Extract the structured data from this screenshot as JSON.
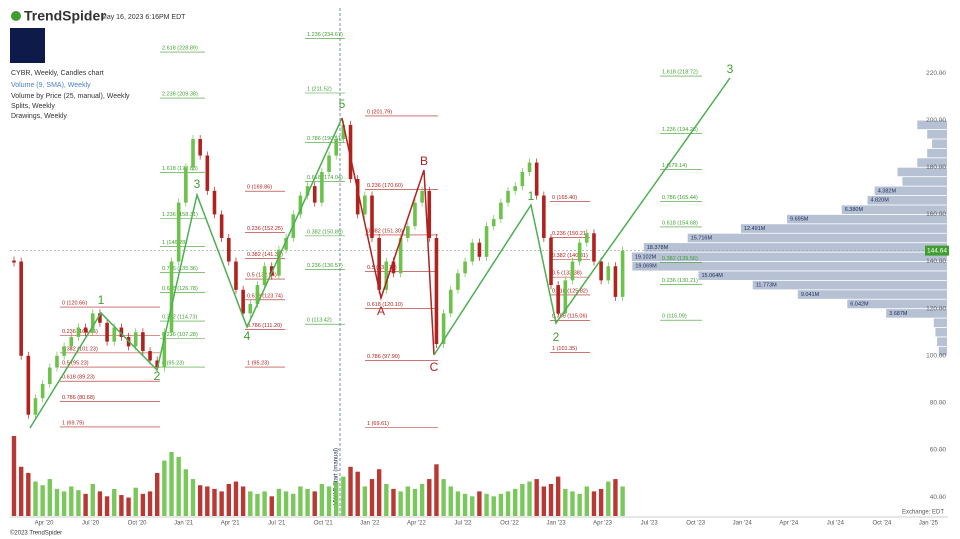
{
  "header": {
    "brand": "TrendSpider",
    "timestamp": "May 16, 2023 6:16PM EDT"
  },
  "legend": [
    "CYBR, Weekly, Candles chart",
    "Volume (9, SMA), Weekly",
    "Volume by Price (25, manual), Weekly",
    "Splits, Weekly",
    "Drawings, Weekly"
  ],
  "footer": {
    "copyright": "©2023 TrendSpider",
    "exchange": "Exchange: EDT"
  },
  "chart_data": {
    "type": "candlestick",
    "closes": [
      140,
      100,
      75,
      82,
      88,
      95,
      100,
      104,
      108,
      112,
      110,
      118,
      114,
      106,
      112,
      108,
      104,
      110,
      102,
      98,
      95,
      110,
      140,
      165,
      180,
      192,
      185,
      170,
      160,
      150,
      140,
      128,
      118,
      122,
      130,
      138,
      134,
      145,
      150,
      160,
      168,
      172,
      165,
      178,
      185,
      192,
      198,
      175,
      160,
      168,
      150,
      128,
      140,
      135,
      150,
      155,
      165,
      170,
      150,
      105,
      118,
      128,
      135,
      140,
      148,
      142,
      155,
      158,
      165,
      170,
      172,
      178,
      182,
      168,
      150,
      130,
      118,
      132,
      140,
      148,
      152,
      140,
      132,
      138,
      125,
      144.64
    ],
    "volumes": [
      6.5,
      4.0,
      3.5,
      2.8,
      2.5,
      3.0,
      2.2,
      2.0,
      2.4,
      2.1,
      1.8,
      2.6,
      2.0,
      1.6,
      2.2,
      1.7,
      1.5,
      2.3,
      1.8,
      2.0,
      3.5,
      4.5,
      5.2,
      4.8,
      3.8,
      3.0,
      2.5,
      2.4,
      2.2,
      2.0,
      2.6,
      2.8,
      2.4,
      2.0,
      1.8,
      2.0,
      1.6,
      2.2,
      2.0,
      1.8,
      2.4,
      2.2,
      2.0,
      2.6,
      2.4,
      2.8,
      3.2,
      4.0,
      3.6,
      2.4,
      3.0,
      3.8,
      2.6,
      2.2,
      2.0,
      2.4,
      2.2,
      2.6,
      3.0,
      4.2,
      3.0,
      2.4,
      2.0,
      1.8,
      1.6,
      2.0,
      1.8,
      1.6,
      1.8,
      2.0,
      2.2,
      2.6,
      2.8,
      3.0,
      2.4,
      2.6,
      3.2,
      2.2,
      2.0,
      1.8,
      2.4,
      2.0,
      2.2,
      2.8,
      3.0,
      2.4
    ],
    "up_color": "#6cc24a",
    "down_color": "#b0221e",
    "ylim": [
      32,
      247.6
    ],
    "yticks": [
      {
        "value": 40,
        "label": "40.00"
      },
      {
        "value": 60,
        "label": "60.00"
      },
      {
        "value": 80,
        "label": "80.00"
      },
      {
        "value": 100,
        "label": "100.00"
      },
      {
        "value": 120,
        "label": "120.00"
      },
      {
        "value": 140,
        "label": "140.00"
      },
      {
        "value": 160,
        "label": "160.00"
      },
      {
        "value": 180,
        "label": "180.00"
      },
      {
        "value": 200,
        "label": "200.00"
      },
      {
        "value": 220,
        "label": "220.00"
      }
    ],
    "x_labels": [
      "Apr '20",
      "Jul '20",
      "Oct '20",
      "Jan '21",
      "Apr '21",
      "Jul '21",
      "Oct '21",
      "Jan '22",
      "Apr '22",
      "Jul '22",
      "Oct '22",
      "Jan '23",
      "Apr '23",
      "Jul '23",
      "Oct '23",
      "Jan '24",
      "Apr '24",
      "Jul '24",
      "Oct '24",
      "Jan '25"
    ],
    "last_price": 144.64,
    "vwap_label": "VWAP Start (manual)",
    "fib_groups": [
      {
        "color": "#b0221e",
        "levels": [
          {
            "value": 120.66,
            "label": "0 (120.66)"
          },
          {
            "value": 108.66,
            "label": "0.236 (108.66)"
          },
          {
            "value": 101.23,
            "label": "0.382 (101.23)"
          },
          {
            "value": 95.23,
            "label": "0.5 (95.23)"
          },
          {
            "value": 89.23,
            "label": "0.618 (89.23)"
          },
          {
            "value": 80.68,
            "label": "0.786 (80.68)"
          },
          {
            "value": 69.79,
            "label": "1 (69.79)"
          }
        ]
      },
      {
        "color": "#3f9e2f",
        "levels": [
          {
            "value": 228.89,
            "label": "2.618 (228.89)"
          },
          {
            "value": 209.38,
            "label": "2.236 (209.38)"
          },
          {
            "value": 177.83,
            "label": "1.618 (177.83)"
          },
          {
            "value": 158.31,
            "label": "1.236 (158.31)"
          },
          {
            "value": 146.28,
            "label": "1 (146.28)"
          },
          {
            "value": 135.36,
            "label": "0.786 (135.36)"
          },
          {
            "value": 126.78,
            "label": "0.618 (126.78)"
          },
          {
            "value": 114.73,
            "label": "0.382 (114.73)"
          },
          {
            "value": 107.28,
            "label": "0.236 (107.28)"
          },
          {
            "value": 95.23,
            "label": "0 (95.23)"
          }
        ]
      },
      {
        "color": "#b0221e",
        "levels": [
          {
            "value": 169.86,
            "label": "0 (169.86)"
          },
          {
            "value": 152.25,
            "label": "0.236 (152.25)"
          },
          {
            "value": 141.37,
            "label": "0.382 (141.37)"
          },
          {
            "value": 132.54,
            "label": "0.5 (132.54)"
          },
          {
            "value": 123.74,
            "label": "0.618 (123.74)"
          },
          {
            "value": 111.2,
            "label": "0.786 (111.20)"
          },
          {
            "value": 95.23,
            "label": "1 (95.23)"
          }
        ]
      },
      {
        "color": "#3f9e2f",
        "levels": [
          {
            "value": 234.67,
            "label": "1.236 (234.67)"
          },
          {
            "value": 211.52,
            "label": "1 (211.52)"
          },
          {
            "value": 190.51,
            "label": "0.786 (190.51)"
          },
          {
            "value": 174.04,
            "label": "0.618 (174.04)"
          },
          {
            "value": 150.89,
            "label": "0.382 (150.89)"
          },
          {
            "value": 136.57,
            "label": "0.236 (136.57)"
          },
          {
            "value": 113.42,
            "label": "0 (113.42)"
          }
        ]
      },
      {
        "color": "#b0221e",
        "levels": [
          {
            "value": 201.79,
            "label": "0 (201.79)"
          },
          {
            "value": 170.6,
            "label": "0.236 (170.60)"
          },
          {
            "value": 151.3,
            "label": "0.382 (151.30)"
          },
          {
            "value": 135.7,
            "label": "0.5 (135.70)"
          },
          {
            "value": 120.1,
            "label": "0.618 (120.10)"
          },
          {
            "value": 97.9,
            "label": "0.786 (97.90)"
          },
          {
            "value": 69.61,
            "label": "1 (69.61)"
          }
        ]
      },
      {
        "color": "#b0221e",
        "levels": [
          {
            "value": 165.4,
            "label": "0 (165.40)"
          },
          {
            "value": 150.21,
            "label": "0.236 (150.21)"
          },
          {
            "value": 140.81,
            "label": "0.382 (140.81)"
          },
          {
            "value": 133.38,
            "label": "0.5 (133.38)"
          },
          {
            "value": 125.82,
            "label": "0.618 (125.82)"
          },
          {
            "value": 115.06,
            "label": "0.786 (115.06)"
          },
          {
            "value": 101.35,
            "label": "1 (101.35)"
          }
        ]
      },
      {
        "color": "#3f9e2f",
        "levels": [
          {
            "value": 218.72,
            "label": "1.618 (218.72)"
          },
          {
            "value": 194.26,
            "label": "1.236 (194.26)"
          },
          {
            "value": 179.14,
            "label": "1 (179.14)"
          },
          {
            "value": 165.44,
            "label": "0.786 (165.44)"
          },
          {
            "value": 154.68,
            "label": "0.618 (154.68)"
          },
          {
            "value": 139.56,
            "label": "0.382 (139.56)"
          },
          {
            "value": 130.21,
            "label": "0.236 (130.21)"
          },
          {
            "value": 115.09,
            "label": "0 (115.09)"
          }
        ]
      }
    ],
    "wave_labels": [
      {
        "text": "1",
        "color": "#3f9e2f"
      },
      {
        "text": "2",
        "color": "#3f9e2f"
      },
      {
        "text": "3",
        "color": "#3f9e2f"
      },
      {
        "text": "4",
        "color": "#3f9e2f"
      },
      {
        "text": "5",
        "color": "#3f9e2f"
      },
      {
        "text": "A",
        "color": "#b0221e"
      },
      {
        "text": "B",
        "color": "#b0221e"
      },
      {
        "text": "C",
        "color": "#b0221e"
      },
      {
        "text": "1",
        "color": "#3f9e2f"
      },
      {
        "text": "2",
        "color": "#3f9e2f"
      },
      {
        "text": "3",
        "color": "#3f9e2f"
      }
    ],
    "volume_profile": {
      "prices": [
        198,
        194,
        190,
        186,
        182,
        178,
        174,
        170,
        166,
        162,
        158,
        154,
        150,
        146,
        142,
        138,
        134,
        130,
        126,
        122,
        118,
        114,
        110,
        106,
        102
      ],
      "values": [
        1800000,
        1200000,
        900000,
        1200000,
        1800000,
        3000000,
        2700000,
        4382000,
        4820000,
        6380000,
        9695000,
        12491000,
        15716000,
        18378000,
        19102000,
        19069000,
        15064000,
        11773000,
        9041000,
        6042000,
        3687000,
        800000,
        700000,
        600000,
        500000
      ],
      "value_labels": [
        null,
        null,
        null,
        null,
        null,
        null,
        null,
        "4.382M",
        "4.820M",
        "6.380M",
        "9.695M",
        "12.491M",
        "15.716M",
        "18.378M",
        "19.102M",
        "19.069M",
        "15.064M",
        "11.773M",
        "9.041M",
        "6.042M",
        "3.687M",
        null,
        null,
        null,
        null
      ]
    }
  }
}
